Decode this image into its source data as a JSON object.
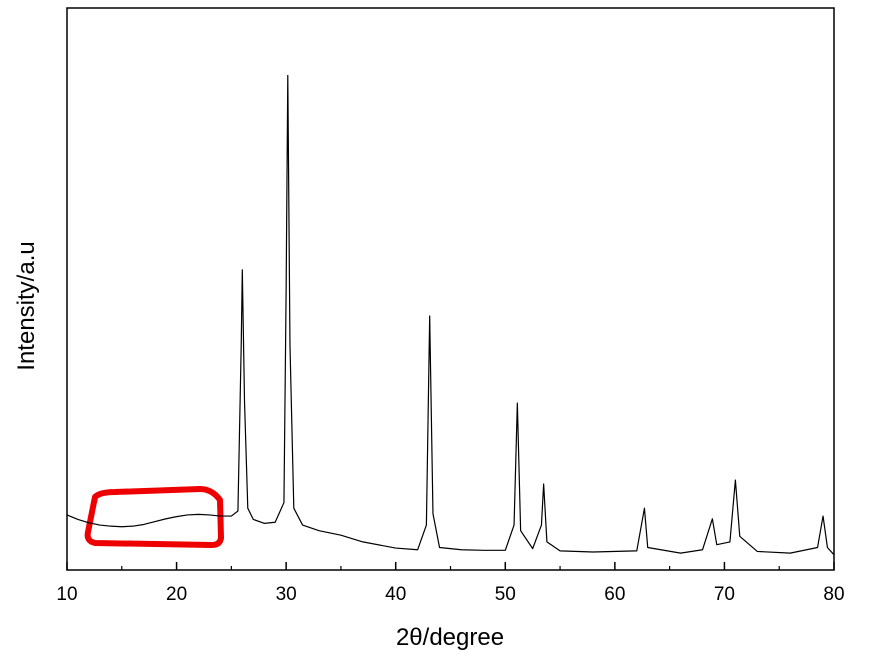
{
  "chart_data": {
    "type": "line",
    "xlabel": "2θ/degree",
    "ylabel": "Intensity/a.u",
    "xlim": [
      10,
      80
    ],
    "xticks": [
      10,
      20,
      30,
      40,
      50,
      60,
      70,
      80
    ],
    "ylim": [
      0,
      100
    ],
    "series": [
      {
        "color": "#000000",
        "x": [
          10,
          11,
          12,
          13,
          14,
          15,
          16,
          17,
          18,
          19,
          20,
          21,
          22,
          23,
          24,
          25,
          25.6,
          25.9,
          26.0,
          26.2,
          26.5,
          27,
          28,
          29,
          29.8,
          30.0,
          30.15,
          30.35,
          30.7,
          31.5,
          33,
          35,
          37,
          40,
          42,
          42.8,
          43.1,
          43.4,
          44,
          46,
          48,
          50,
          50.8,
          51.1,
          51.4,
          52.5,
          53.3,
          53.5,
          53.8,
          55,
          58,
          62,
          62.7,
          63,
          66,
          68,
          68.9,
          69.3,
          70.5,
          71,
          71.4,
          73,
          76,
          78.5,
          79,
          79.4,
          80
        ],
        "values": [
          9.8,
          9.0,
          8.4,
          8.0,
          7.8,
          7.7,
          7.8,
          8.1,
          8.6,
          9.1,
          9.5,
          9.8,
          9.9,
          9.8,
          9.6,
          9.6,
          10.5,
          40,
          53.4,
          30,
          11,
          9,
          8.3,
          8.5,
          12,
          50,
          88,
          40,
          11,
          8,
          7,
          6.2,
          5,
          3.9,
          3.6,
          8,
          45.2,
          10,
          4,
          3.6,
          3.5,
          3.5,
          8,
          29.7,
          7,
          3.8,
          8,
          15.3,
          5,
          3.4,
          3.2,
          3.4,
          11,
          4,
          3.0,
          3.6,
          9.1,
          4.5,
          5,
          16,
          6,
          3.3,
          3,
          4,
          9.6,
          4,
          2.7
        ]
      }
    ]
  }
}
